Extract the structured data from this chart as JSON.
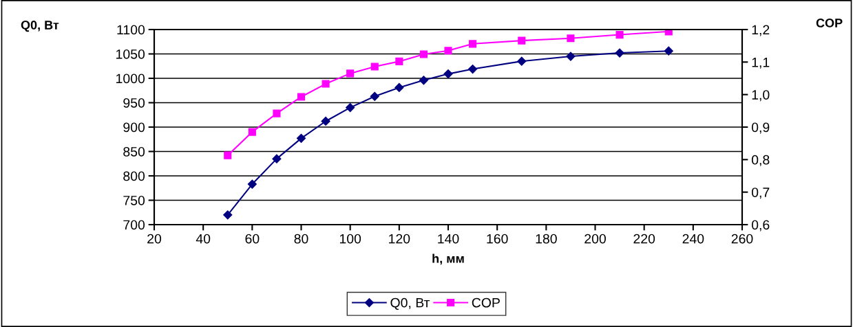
{
  "chart_data": {
    "type": "line",
    "xlabel": "h, мм",
    "ylabel": "Q0, Вт",
    "y2label": "COP",
    "x": [
      50,
      60,
      70,
      80,
      90,
      100,
      110,
      120,
      130,
      140,
      150,
      170,
      190,
      210,
      230
    ],
    "series": [
      {
        "name": "Q0, Вт",
        "color": "#000080",
        "marker": "diamond",
        "values": [
          720,
          783,
          835,
          877,
          912,
          940,
          963,
          981,
          996,
          1009,
          1019,
          1035,
          1045,
          1052,
          1056
        ]
      },
      {
        "name": "COP",
        "color": "#ff00ff",
        "marker": "square",
        "axis": "y2",
        "values": [
          0.813,
          0.885,
          0.942,
          0.993,
          1.033,
          1.065,
          1.086,
          1.102,
          1.124,
          1.135,
          1.156,
          1.166,
          1.173,
          1.184,
          1.194
        ]
      }
    ],
    "xlim": [
      20,
      260
    ],
    "xticks": [
      20,
      40,
      60,
      80,
      100,
      120,
      140,
      160,
      180,
      200,
      220,
      240,
      260
    ],
    "ylim": [
      700,
      1100
    ],
    "yticks": [
      700,
      750,
      800,
      850,
      900,
      950,
      1000,
      1050,
      1100
    ],
    "y2lim": [
      0.6,
      1.2
    ],
    "y2ticks": [
      {
        "value": 0.6,
        "label": "0,6"
      },
      {
        "value": 0.7,
        "label": "0,7"
      },
      {
        "value": 0.8,
        "label": "0,8"
      },
      {
        "value": 0.9,
        "label": "0,9"
      },
      {
        "value": 1.0,
        "label": "1,0"
      },
      {
        "value": 1.1,
        "label": "1,1"
      },
      {
        "value": 1.2,
        "label": "1,2"
      }
    ],
    "grid": "y",
    "legend": "bottom",
    "line_style": "solid"
  }
}
